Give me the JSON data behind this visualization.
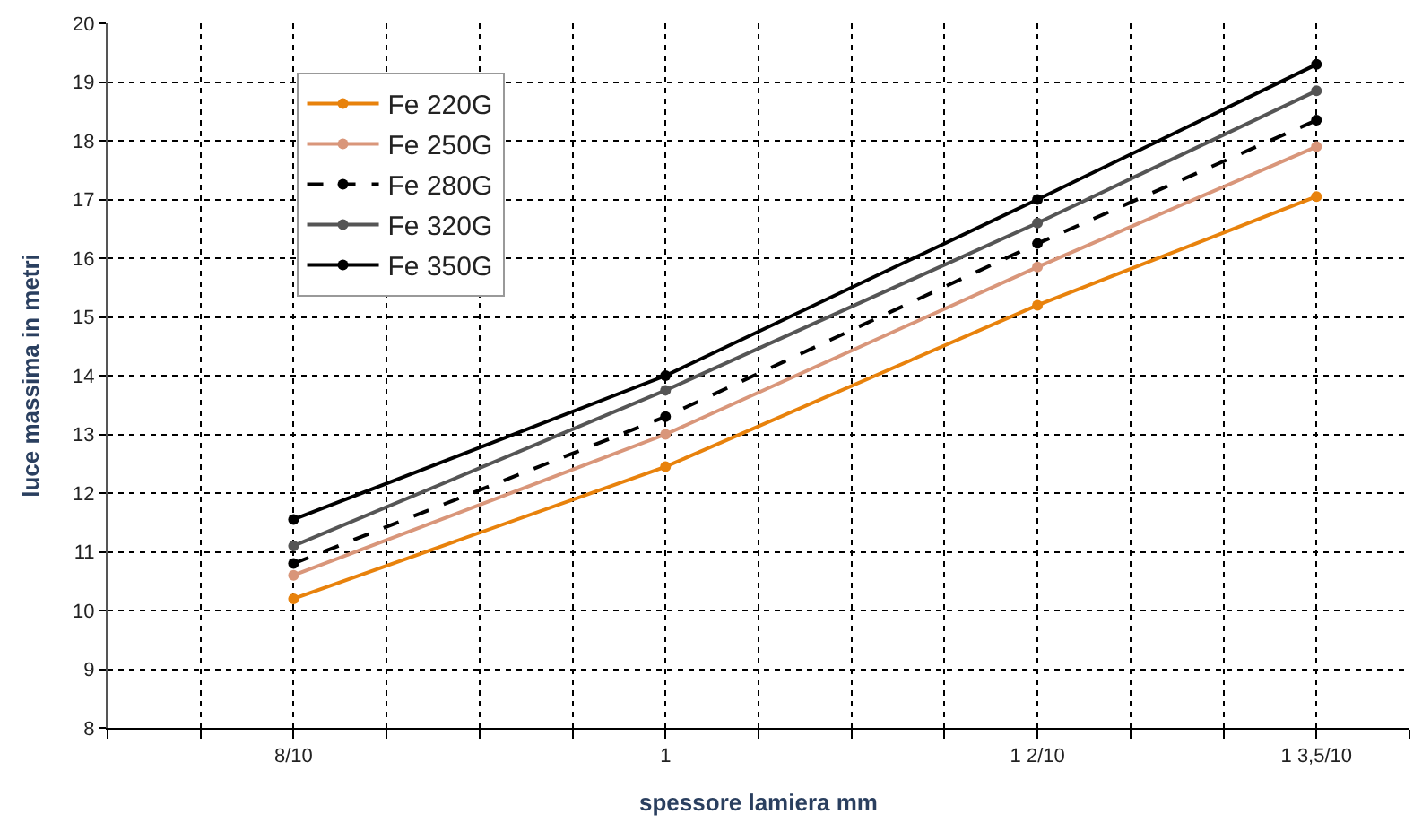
{
  "chart_data": {
    "type": "line",
    "xlabel": "spessore lamiera mm",
    "ylabel": "luce massima in metri",
    "x": [
      0.8,
      1.0,
      1.2,
      1.35
    ],
    "xlim": [
      0.7,
      1.4
    ],
    "xticks": [
      {
        "value": 0.7,
        "label": null
      },
      {
        "value": 0.75,
        "label": null
      },
      {
        "value": 0.8,
        "label": "8/10"
      },
      {
        "value": 0.85,
        "label": null
      },
      {
        "value": 0.9,
        "label": null
      },
      {
        "value": 0.95,
        "label": null
      },
      {
        "value": 1.0,
        "label": "1"
      },
      {
        "value": 1.05,
        "label": null
      },
      {
        "value": 1.1,
        "label": null
      },
      {
        "value": 1.15,
        "label": null
      },
      {
        "value": 1.2,
        "label": "1 2/10"
      },
      {
        "value": 1.25,
        "label": null
      },
      {
        "value": 1.3,
        "label": null
      },
      {
        "value": 1.35,
        "label": "1 3,5/10"
      },
      {
        "value": 1.4,
        "label": null
      }
    ],
    "ylim": [
      8,
      20
    ],
    "yticks": [
      8,
      9,
      10,
      11,
      12,
      13,
      14,
      15,
      16,
      17,
      18,
      19,
      20
    ],
    "grid": true,
    "legend": "top left",
    "marker": "circle",
    "series": [
      {
        "name": "Fe 220G",
        "color": "#e8820c",
        "values": [
          10.2,
          12.45,
          15.2,
          17.05
        ],
        "line_style": "solid"
      },
      {
        "name": "Fe 250G",
        "color": "#d9967a",
        "values": [
          10.6,
          13.0,
          15.85,
          17.9
        ],
        "line_style": "solid"
      },
      {
        "name": "Fe 280G",
        "color": "#000000",
        "values": [
          10.8,
          13.3,
          16.25,
          18.35
        ],
        "line_style": "dashed"
      },
      {
        "name": "Fe 320G",
        "color": "#555555",
        "values": [
          11.1,
          13.75,
          16.6,
          18.85
        ],
        "line_style": "solid"
      },
      {
        "name": "Fe 350G",
        "color": "#000000",
        "values": [
          11.55,
          14.0,
          17.0,
          19.3
        ],
        "line_style": "solid"
      }
    ]
  }
}
